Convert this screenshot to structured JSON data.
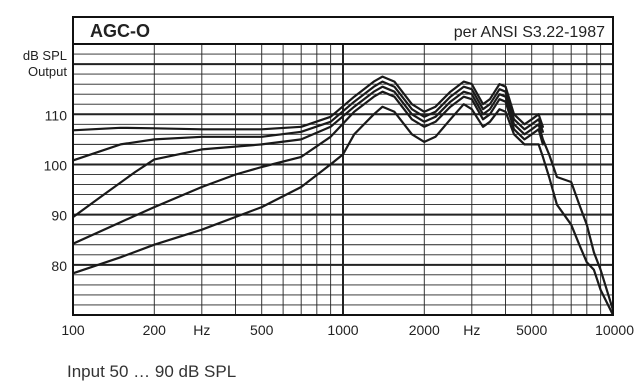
{
  "chart_data": {
    "type": "line",
    "title": "AGC-O",
    "subtitle": "per ANSI S3.22-1987",
    "ylabel_line1": "dB SPL",
    "ylabel_line2": "Output",
    "x_scale": "log",
    "xlim": [
      100,
      10000
    ],
    "ylim": [
      70,
      124
    ],
    "grid": true,
    "x_ticks": [
      {
        "value": 100,
        "label": "100"
      },
      {
        "value": 200,
        "label": "200"
      },
      {
        "value": 500,
        "label": "500"
      },
      {
        "value": 1000,
        "label": "1000"
      },
      {
        "value": 2000,
        "label": "2000"
      },
      {
        "value": 5000,
        "label": "5000"
      },
      {
        "value": 10000,
        "label": "10000"
      }
    ],
    "x_unit_labels": [
      {
        "value": 300,
        "label": "Hz"
      },
      {
        "value": 3000,
        "label": "Hz"
      }
    ],
    "y_ticks": [
      {
        "value": 80,
        "label": "80"
      },
      {
        "value": 90,
        "label": "90"
      },
      {
        "value": 100,
        "label": "100"
      },
      {
        "value": 110,
        "label": "110"
      }
    ],
    "series": [
      {
        "values": [
          [
            100,
            106.8
          ],
          [
            150,
            107.3
          ],
          [
            200,
            107.2
          ],
          [
            300,
            107.0
          ],
          [
            500,
            107.0
          ],
          [
            700,
            107.5
          ],
          [
            900,
            109.5
          ],
          [
            1100,
            113.5
          ],
          [
            1300,
            116.5
          ],
          [
            1400,
            117.5
          ],
          [
            1550,
            116.5
          ],
          [
            1800,
            112.0
          ],
          [
            2000,
            110.5
          ],
          [
            2200,
            111.5
          ],
          [
            2500,
            114.5
          ],
          [
            2800,
            116.5
          ],
          [
            3000,
            116.0
          ],
          [
            3300,
            112.0
          ],
          [
            3500,
            113.0
          ],
          [
            3800,
            116.0
          ],
          [
            4000,
            115.5
          ],
          [
            4300,
            110.0
          ],
          [
            4700,
            108.0
          ],
          [
            5000,
            109.0
          ],
          [
            5300,
            110.0
          ],
          [
            5500,
            107.5
          ]
        ]
      },
      {
        "values": [
          [
            100,
            100.8
          ],
          [
            150,
            104.0
          ],
          [
            200,
            105.0
          ],
          [
            300,
            105.5
          ],
          [
            500,
            105.5
          ],
          [
            700,
            106.5
          ],
          [
            900,
            108.5
          ],
          [
            1100,
            112.5
          ],
          [
            1300,
            115.5
          ],
          [
            1400,
            116.5
          ],
          [
            1550,
            115.5
          ],
          [
            1800,
            111.0
          ],
          [
            2000,
            109.5
          ],
          [
            2200,
            110.5
          ],
          [
            2500,
            113.5
          ],
          [
            2800,
            115.5
          ],
          [
            3000,
            115.0
          ],
          [
            3300,
            111.0
          ],
          [
            3500,
            112.0
          ],
          [
            3800,
            115.0
          ],
          [
            4000,
            114.5
          ],
          [
            4300,
            109.0
          ],
          [
            4700,
            107.0
          ],
          [
            5000,
            108.0
          ],
          [
            5300,
            109.0
          ],
          [
            5500,
            106.5
          ]
        ]
      },
      {
        "values": [
          [
            100,
            89.5
          ],
          [
            130,
            94.0
          ],
          [
            170,
            98.5
          ],
          [
            200,
            101.0
          ],
          [
            300,
            103.0
          ],
          [
            500,
            104.0
          ],
          [
            700,
            105.0
          ],
          [
            900,
            107.5
          ],
          [
            1100,
            111.5
          ],
          [
            1300,
            114.5
          ],
          [
            1400,
            115.5
          ],
          [
            1550,
            114.5
          ],
          [
            1800,
            110.0
          ],
          [
            2000,
            108.5
          ],
          [
            2200,
            109.5
          ],
          [
            2500,
            112.5
          ],
          [
            2800,
            114.5
          ],
          [
            3000,
            114.0
          ],
          [
            3300,
            110.0
          ],
          [
            3500,
            111.0
          ],
          [
            3800,
            114.0
          ],
          [
            4000,
            113.5
          ],
          [
            4300,
            108.0
          ],
          [
            4700,
            106.0
          ],
          [
            5000,
            107.0
          ],
          [
            5300,
            108.0
          ],
          [
            5500,
            105.0
          ],
          [
            5800,
            102.0
          ],
          [
            6200,
            97.5
          ],
          [
            7000,
            96.5
          ],
          [
            7500,
            92.0
          ],
          [
            8000,
            88.0
          ],
          [
            8500,
            82.5
          ],
          [
            9000,
            79.0
          ],
          [
            10000,
            71.0
          ]
        ]
      },
      {
        "values": [
          [
            100,
            84.2
          ],
          [
            150,
            88.5
          ],
          [
            200,
            91.5
          ],
          [
            300,
            95.5
          ],
          [
            400,
            98.0
          ],
          [
            500,
            99.5
          ],
          [
            700,
            101.5
          ],
          [
            900,
            105.5
          ],
          [
            1100,
            110.5
          ],
          [
            1300,
            113.5
          ],
          [
            1400,
            114.5
          ],
          [
            1550,
            113.5
          ],
          [
            1800,
            109.0
          ],
          [
            2000,
            107.5
          ],
          [
            2200,
            108.5
          ],
          [
            2500,
            111.5
          ],
          [
            2800,
            113.5
          ],
          [
            3000,
            113.0
          ],
          [
            3300,
            109.0
          ],
          [
            3500,
            110.0
          ],
          [
            3800,
            113.0
          ],
          [
            4000,
            112.5
          ],
          [
            4300,
            107.0
          ],
          [
            4700,
            105.0
          ],
          [
            5000,
            106.0
          ],
          [
            5300,
            107.0
          ],
          [
            5500,
            104.0
          ]
        ]
      },
      {
        "values": [
          [
            100,
            78.3
          ],
          [
            150,
            81.5
          ],
          [
            200,
            84.0
          ],
          [
            300,
            87.0
          ],
          [
            500,
            91.5
          ],
          [
            700,
            95.5
          ],
          [
            900,
            100.0
          ],
          [
            1000,
            102.0
          ],
          [
            1100,
            106.0
          ],
          [
            1300,
            110.0
          ],
          [
            1400,
            111.5
          ],
          [
            1550,
            110.5
          ],
          [
            1800,
            106.0
          ],
          [
            2000,
            104.5
          ],
          [
            2200,
            105.5
          ],
          [
            2500,
            109.0
          ],
          [
            2800,
            112.0
          ],
          [
            3000,
            111.0
          ],
          [
            3300,
            107.5
          ],
          [
            3500,
            108.5
          ],
          [
            3800,
            111.0
          ],
          [
            4000,
            110.5
          ],
          [
            4300,
            106.0
          ],
          [
            4700,
            104.0
          ],
          [
            5000,
            104.0
          ],
          [
            5300,
            104.0
          ],
          [
            5500,
            101.5
          ],
          [
            5800,
            97.5
          ],
          [
            6200,
            92.0
          ],
          [
            7000,
            88.0
          ],
          [
            7500,
            84.0
          ],
          [
            8000,
            80.5
          ],
          [
            8500,
            79.0
          ],
          [
            9000,
            75.0
          ],
          [
            10000,
            70.0
          ]
        ]
      }
    ],
    "caption": "Input 50 … 90 dB SPL"
  }
}
